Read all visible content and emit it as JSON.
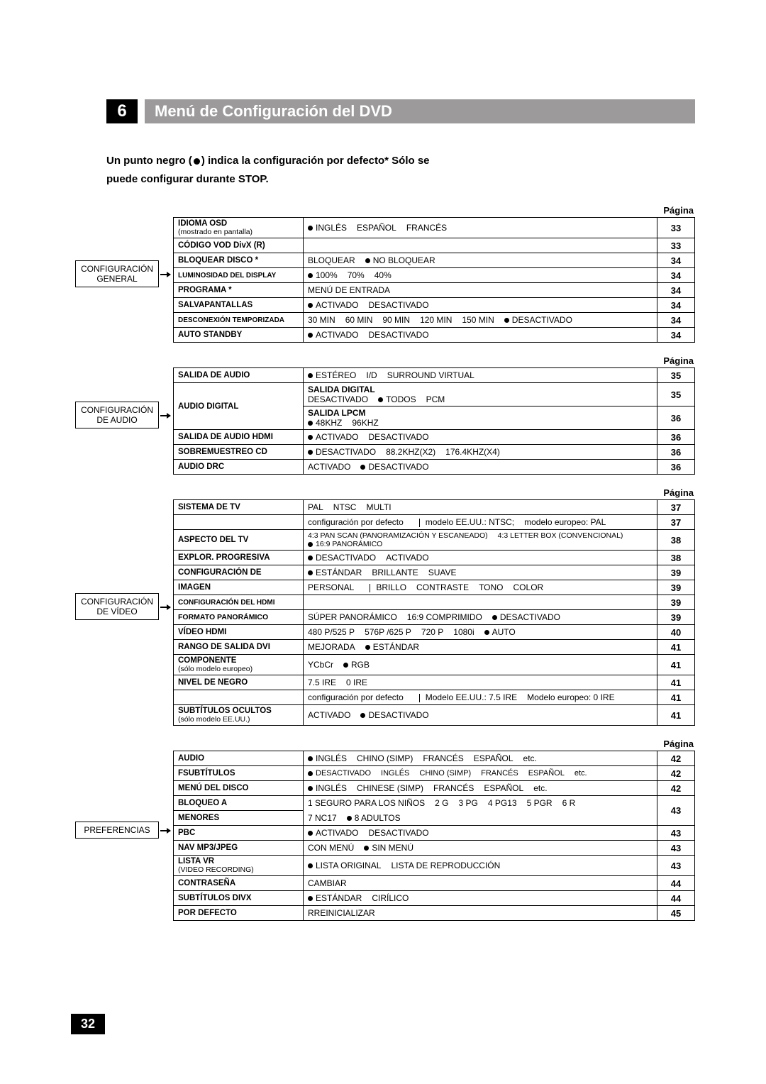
{
  "chapter_number": "6",
  "chapter_title": "Menú de Configuración del DVD",
  "intro_line1": "Un punto negro (",
  "intro_line2": ") indica la configuración por defecto* Sólo se",
  "intro_line3": "puede configurar durante STOP.",
  "page_label": "Página",
  "page_number": "32",
  "cat1": "CONFIGURACIÓN GENERAL",
  "cat2": "CONFIGURACIÓN DE AUDIO",
  "cat3": "CONFIGURACIÓN DE VÍDEO",
  "cat4": "PREFERENCIAS",
  "g_idioma_l": "IDIOMA OSD",
  "g_idioma_sub": "(mostrado en pantalla)",
  "g_idioma_o1": "INGLÉS",
  "g_idioma_o2": "ESPAÑOL",
  "g_idioma_o3": "FRANCÉS",
  "g_idioma_p": "33",
  "g_cod_l": "CÓDIGO VOD DivX (R)",
  "g_cod_p": "33",
  "g_bloq_l": "BLOQUEAR DISCO *",
  "g_bloq_o1": "BLOQUEAR",
  "g_bloq_o2": "NO BLOQUEAR",
  "g_bloq_p": "34",
  "g_lum_l": "LUMINOSIDAD DEL DISPLAY",
  "g_lum_o1": "100%",
  "g_lum_o2": "70%",
  "g_lum_o3": "40%",
  "g_lum_p": "34",
  "g_prog_l": "PROGRAMA *",
  "g_prog_o1": "MENÚ DE ENTRADA",
  "g_prog_p": "34",
  "g_salva_l": "SALVAPANTALLAS",
  "g_salva_o1": "ACTIVADO",
  "g_salva_o2": "DESACTIVADO",
  "g_salva_p": "34",
  "g_desc_l": "DESCONEXIÓN TEMPORIZADA",
  "g_desc_o1": "30 MIN",
  "g_desc_o2": "60 MIN",
  "g_desc_o3": "90 MIN",
  "g_desc_o4": "120 MIN",
  "g_desc_o5": "150 MIN",
  "g_desc_o6": "DESACTIVADO",
  "g_desc_p": "34",
  "g_auto_l": "AUTO STANDBY",
  "g_auto_o1": "ACTIVADO",
  "g_auto_o2": "DESACTIVADO",
  "g_auto_p": "34",
  "a_sal_l": "SALIDA DE AUDIO",
  "a_sal_o1": "ESTÉREO",
  "a_sal_o2": "I/D",
  "a_sal_o3": "SURROUND VIRTUAL",
  "a_sal_p": "35",
  "a_dig_l": "AUDIO DIGITAL",
  "a_dig_h1": "SALIDA DIGITAL",
  "a_dig_o1": "DESACTIVADO",
  "a_dig_o2": "TODOS",
  "a_dig_o3": "PCM",
  "a_dig_p1": "35",
  "a_dig_h2": "SALIDA LPCM",
  "a_dig_o4": "48KHZ",
  "a_dig_o5": "96KHZ",
  "a_dig_p2": "36",
  "a_hdmi_l": "SALIDA DE AUDIO HDMI",
  "a_hdmi_o1": "ACTIVADO",
  "a_hdmi_o2": "DESACTIVADO",
  "a_hdmi_p": "36",
  "a_sob_l": "SOBREMUESTREO CD",
  "a_sob_o1": "DESACTIVADO",
  "a_sob_o2": "88.2KHZ(X2)",
  "a_sob_o3": "176.4KHZ(X4)",
  "a_sob_p": "36",
  "a_drc_l": "AUDIO DRC",
  "a_drc_o1": "ACTIVADO",
  "a_drc_o2": "DESACTIVADO",
  "a_drc_p": "36",
  "v_sis_l": "SISTEMA DE TV",
  "v_sis_o1": "PAL",
  "v_sis_o2": "NTSC",
  "v_sis_o3": "MULTI",
  "v_sis_p": "37",
  "v_sis2_o1": "configuración por defecto",
  "v_sis2_o2": "modelo EE.UU.: NTSC;",
  "v_sis2_o3": "modelo europeo: PAL",
  "v_sis2_p": "37",
  "v_asp_l": "ASPECTO DEL TV",
  "v_asp_o1": "4:3 PAN SCAN (PANORAMIZACIÓN Y ESCANEADO)",
  "v_asp_o2": "4:3 LETTER BOX (CONVENCIONAL)",
  "v_asp_o3": "16:9 PANORÁMICO",
  "v_asp_p": "38",
  "v_exp_l": "EXPLOR. PROGRESIVA",
  "v_exp_o1": "DESACTIVADO",
  "v_exp_o2": "ACTIVADO",
  "v_exp_p": "38",
  "v_conf_l": "CONFIGURACIÓN DE",
  "v_conf_o1": "ESTÁNDAR",
  "v_conf_o2": "BRILLANTE",
  "v_conf_o3": "SUAVE",
  "v_conf_p": "39",
  "v_img_l": "IMAGEN",
  "v_img_o1": "PERSONAL",
  "v_img_o2": "BRILLO",
  "v_img_o3": "CONTRASTE",
  "v_img_o4": "TONO",
  "v_img_o5": "COLOR",
  "v_img_p": "39",
  "v_chdmi_l": "CONFIGURACIÓN DEL HDMI",
  "v_chdmi_p": "39",
  "v_pan_l": "FORMATO PANORÁMICO",
  "v_pan_o1": "SÚPER PANORÁMICO",
  "v_pan_o2": "16:9 COMPRIMIDO",
  "v_pan_o3": "DESACTIVADO",
  "v_pan_p": "39",
  "v_vhdmi_l": "VÍDEO HDMI",
  "v_vhdmi_o1": "480 P/525 P",
  "v_vhdmi_o2": "576P /625 P",
  "v_vhdmi_o3": "720 P",
  "v_vhdmi_o4": "1080i",
  "v_vhdmi_o5": "AUTO",
  "v_vhdmi_p": "40",
  "v_dvi_l": "RANGO DE SALIDA DVI",
  "v_dvi_o1": "MEJORADA",
  "v_dvi_o2": "ESTÁNDAR",
  "v_dvi_p": "41",
  "v_comp_l": "COMPONENTE",
  "v_comp_sub": "(sólo modelo europeo)",
  "v_comp_o1": "YCbCr",
  "v_comp_o2": "RGB",
  "v_comp_p": "41",
  "v_neg_l": "NIVEL DE NEGRO",
  "v_neg_o1": "7.5 IRE",
  "v_neg_o2": "0 IRE",
  "v_neg_p": "41",
  "v_neg2_o1": "configuración por defecto",
  "v_neg2_o2": "Modelo EE.UU.: 7.5 IRE",
  "v_neg2_o3": "Modelo europeo: 0 IRE",
  "v_neg2_p": "41",
  "v_sub_l": "SUBTÍTULOS OCULTOS",
  "v_sub_sub": "(sólo modelo EE.UU.)",
  "v_sub_o1": "ACTIVADO",
  "v_sub_o2": "DESACTIVADO",
  "v_sub_p": "41",
  "p_aud_l": "AUDIO",
  "p_aud_o1": "INGLÉS",
  "p_aud_o2": "CHINO (SIMP)",
  "p_aud_o3": "FRANCÉS",
  "p_aud_o4": "ESPAÑOL",
  "p_aud_o5": "etc.",
  "p_aud_p": "42",
  "p_fsub_l": "FSUBTÍTULOS",
  "p_fsub_o1": "DESACTIVADO",
  "p_fsub_o2": "INGLÉS",
  "p_fsub_o3": "CHINO (SIMP)",
  "p_fsub_o4": "FRANCÉS",
  "p_fsub_o5": "ESPAÑOL",
  "p_fsub_o6": "etc.",
  "p_fsub_p": "42",
  "p_menu_l": "MENÚ DEL DISCO",
  "p_menu_o1": "INGLÉS",
  "p_menu_o2": "CHINESE (SIMP)",
  "p_menu_o3": "FRANCÉS",
  "p_menu_o4": "ESPAÑOL",
  "p_menu_o5": "etc.",
  "p_menu_p": "42",
  "p_bloq_l": "BLOQUEO A",
  "p_bloq_o1": "1 SEGURO PARA LOS NIÑOS",
  "p_bloq_o2": "2 G",
  "p_bloq_o3": "3 PG",
  "p_bloq_o4": "4 PG13",
  "p_bloq_o5": "5 PGR",
  "p_bloq_o6": "6 R",
  "p_men_l": "MENORES",
  "p_men_o1": "7 NC17",
  "p_men_o2": "8 ADULTOS",
  "p_men_p": "43",
  "p_pbc_l": "PBC",
  "p_pbc_o1": "ACTIVADO",
  "p_pbc_o2": "DESACTIVADO",
  "p_pbc_p": "43",
  "p_nav_l": "NAV MP3/JPEG",
  "p_nav_o1": "CON MENÚ",
  "p_nav_o2": "SIN MENÚ",
  "p_nav_p": "43",
  "p_vr_l": "LISTA VR",
  "p_vr_sub": "(VIDEO RECORDING)",
  "p_vr_o1": "LISTA ORIGINAL",
  "p_vr_o2": "LISTA DE REPRODUCCIÓN",
  "p_vr_p": "43",
  "p_pass_l": "CONTRASEÑA",
  "p_pass_o1": "CAMBIAR",
  "p_pass_p": "44",
  "p_divx_l": "SUBTÍTULOS DIVX",
  "p_divx_o1": "ESTÁNDAR",
  "p_divx_o2": "CIRÍLICO",
  "p_divx_p": "44",
  "p_def_l": "POR DEFECTO",
  "p_def_o1": "RREINICIALIZAR",
  "p_def_p": "45"
}
